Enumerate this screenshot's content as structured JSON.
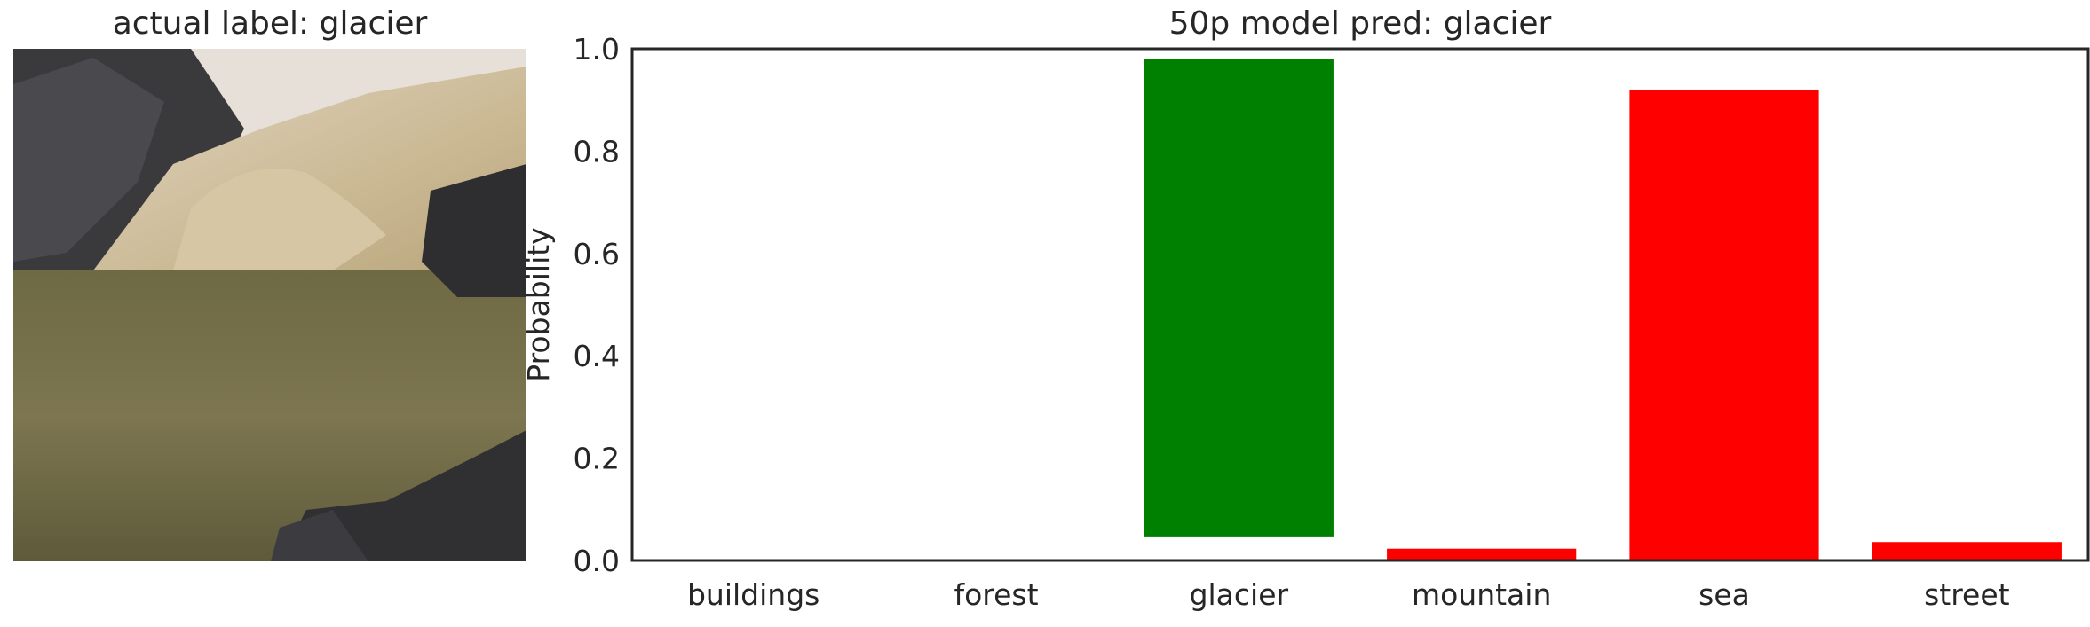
{
  "left_panel": {
    "title": "actual label: glacier"
  },
  "chart_data": {
    "type": "bar",
    "title": "50p model pred: glacier",
    "xlabel": "",
    "ylabel": "Probability",
    "ylim": [
      0,
      1.0
    ],
    "yticks": [
      "0.0",
      "0.2",
      "0.4",
      "0.6",
      "0.8",
      "1.0"
    ],
    "categories": [
      "buildings",
      "forest",
      "glacier",
      "mountain",
      "sea",
      "street"
    ],
    "bars": [
      {
        "category": "buildings",
        "bottom": 0,
        "top": 0,
        "color": "#ff0000"
      },
      {
        "category": "forest",
        "bottom": 0,
        "top": 0,
        "color": "#ff0000"
      },
      {
        "category": "glacier",
        "bottom": 0.047,
        "top": 0.98,
        "color": "#008000"
      },
      {
        "category": "mountain",
        "bottom": 0,
        "top": 0.023,
        "color": "#ff0000"
      },
      {
        "category": "sea",
        "bottom": 0,
        "top": 0.92,
        "color": "#ff0000"
      },
      {
        "category": "street",
        "bottom": 0,
        "top": 0.036,
        "color": "#ff0000"
      }
    ],
    "grid": false,
    "legend": "none"
  }
}
